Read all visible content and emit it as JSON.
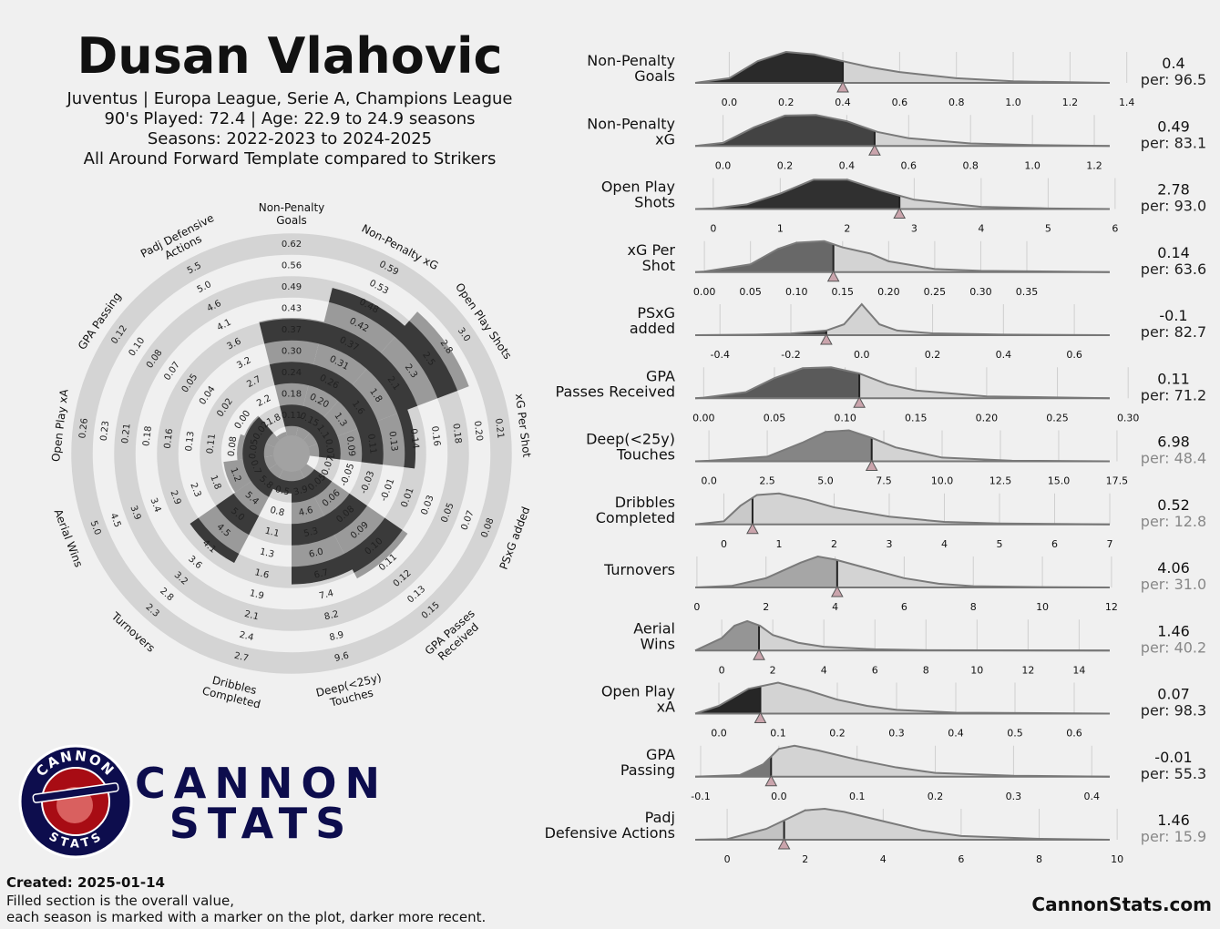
{
  "header": {
    "title": "Dusan Vlahovic",
    "subtitle": [
      "Juventus | Europa League, Serie A, Champions League",
      "90's Played: 72.4 | Age: 22.9 to 24.9 seasons",
      "Seasons: 2022-2023 to 2024-2025",
      "All Around Forward Template compared to Strikers"
    ]
  },
  "chart_data": {
    "type": "radar",
    "metrics": [
      {
        "radar_label": [
          "Non-Penalty",
          "Goals"
        ],
        "label": [
          "Non-Penalty",
          "Goals"
        ],
        "value": 0.4,
        "percentile": 96.5,
        "percentile_label": "per: 96.5",
        "rings": [
          0.11,
          0.18,
          0.24,
          {
            "value": 0.3,
            "label": "0.30"
          },
          0.37,
          0.43,
          0.49,
          0.56,
          0.62
        ],
        "xlim": [
          -0.12,
          1.34
        ],
        "xticks": [
          {
            "value": 0,
            "label": "0.0"
          },
          0.2,
          0.4,
          0.6,
          0.8,
          {
            "value": 1,
            "label": "1.0"
          },
          1.2,
          1.4
        ],
        "density_x": [
          -0.12,
          0,
          0.1,
          0.2,
          0.3,
          0.4,
          0.5,
          0.6,
          0.8,
          1.0,
          1.34
        ],
        "density_y": [
          0,
          0.15,
          0.7,
          1,
          0.92,
          0.7,
          0.5,
          0.35,
          0.15,
          0.05,
          0
        ]
      },
      {
        "radar_label": [
          "Non-Penalty xG"
        ],
        "label": [
          "Non-Penalty",
          "xG"
        ],
        "value": 0.49,
        "percentile": 83.1,
        "percentile_label": "per: 83.1",
        "rings": [
          0.15,
          {
            "value": 0.2,
            "label": "0.20"
          },
          0.26,
          0.31,
          0.37,
          0.42,
          0.48,
          0.53,
          0.59
        ],
        "xlim": [
          -0.09,
          1.25
        ],
        "xticks": [
          {
            "value": 0,
            "label": "0.0"
          },
          0.2,
          0.4,
          0.6,
          0.8,
          {
            "value": 1,
            "label": "1.0"
          },
          1.2
        ],
        "density_x": [
          -0.09,
          0,
          0.1,
          0.2,
          0.3,
          0.4,
          0.5,
          0.6,
          0.8,
          1.0,
          1.25
        ],
        "density_y": [
          0,
          0.1,
          0.6,
          0.98,
          1,
          0.8,
          0.45,
          0.25,
          0.08,
          0.03,
          0
        ]
      },
      {
        "radar_label": [
          "Open Play Shots"
        ],
        "label": [
          "Open Play",
          "Shots"
        ],
        "value": 2.78,
        "percentile": 93.0,
        "percentile_label": "per: 93.0",
        "rings": [
          1.1,
          1.3,
          1.6,
          1.8,
          2.1,
          2.3,
          2.5,
          2.8,
          {
            "value": 3,
            "label": "3.0"
          }
        ],
        "xlim": [
          -0.27,
          5.92
        ],
        "xticks": [
          0,
          1,
          2,
          3,
          4,
          5,
          6
        ],
        "density_x": [
          -0.27,
          0,
          0.5,
          1,
          1.5,
          2,
          2.5,
          3,
          4,
          5,
          5.92
        ],
        "density_y": [
          0,
          0.02,
          0.15,
          0.5,
          0.95,
          0.95,
          0.6,
          0.3,
          0.07,
          0.02,
          0
        ]
      },
      {
        "radar_label": [
          "xG Per Shot"
        ],
        "label": [
          "xG Per",
          "Shot"
        ],
        "value": 0.14,
        "percentile": 63.6,
        "percentile_label": "per: 63.6",
        "rings": [
          0.07,
          0.09,
          0.11,
          0.13,
          0.14,
          0.16,
          0.18,
          {
            "value": 0.2,
            "label": "0.20"
          },
          0.21
        ],
        "xlim": [
          -0.01,
          0.44
        ],
        "xticks": [
          {
            "value": 0,
            "label": "0.00"
          },
          0.05,
          {
            "value": 0.1,
            "label": "0.10"
          },
          0.15,
          {
            "value": 0.2,
            "label": "0.20"
          },
          0.25,
          {
            "value": 0.3,
            "label": "0.30"
          },
          0.35
        ],
        "density_x": [
          -0.01,
          0,
          0.05,
          0.08,
          0.1,
          0.13,
          0.15,
          0.18,
          0.2,
          0.25,
          0.3,
          0.44
        ],
        "density_y": [
          0,
          0.02,
          0.25,
          0.75,
          0.95,
          1,
          0.8,
          0.6,
          0.35,
          0.1,
          0.04,
          0
        ]
      },
      {
        "radar_label": [
          "PSxG added"
        ],
        "label": [
          "PSxG",
          "added"
        ],
        "value": -0.1,
        "percentile": 82.7,
        "percentile_label": "per: 82.7",
        "rings": [
          -0.07,
          -0.05,
          -0.03,
          -0.01,
          0.01,
          0.03,
          0.05,
          0.07,
          0.08
        ],
        "xlim": [
          -0.47,
          0.7
        ],
        "xticks": [
          -0.4,
          -0.2,
          {
            "value": 0,
            "label": "0.0"
          },
          0.2,
          0.4,
          0.6
        ],
        "density_x": [
          -0.47,
          -0.3,
          -0.2,
          -0.1,
          -0.05,
          0,
          0.05,
          0.1,
          0.2,
          0.4,
          0.7
        ],
        "density_y": [
          0,
          0.02,
          0.05,
          0.15,
          0.35,
          1,
          0.35,
          0.15,
          0.06,
          0.02,
          0
        ]
      },
      {
        "radar_label": [
          "GPA Passes",
          "Received"
        ],
        "label": [
          "GPA",
          "Passes Received"
        ],
        "value": 0.11,
        "percentile": 71.2,
        "percentile_label": "per: 71.2",
        "rings": [
          0.05,
          0.06,
          0.08,
          0.09,
          {
            "value": 0.1,
            "label": "0.10"
          },
          0.11,
          0.12,
          0.13,
          0.15
        ],
        "xlim": [
          -0.006,
          0.287
        ],
        "xticks": [
          {
            "value": 0,
            "label": "0.00"
          },
          0.05,
          {
            "value": 0.1,
            "label": "0.10"
          },
          0.15,
          {
            "value": 0.2,
            "label": "0.20"
          },
          0.25,
          {
            "value": 0.3,
            "label": "0.30"
          }
        ],
        "density_x": [
          -0.006,
          0,
          0.03,
          0.05,
          0.07,
          0.09,
          0.11,
          0.13,
          0.15,
          0.2,
          0.287
        ],
        "density_y": [
          0,
          0.02,
          0.2,
          0.65,
          0.97,
          1,
          0.8,
          0.45,
          0.25,
          0.06,
          0
        ]
      },
      {
        "radar_label": [
          "Deep(<25y)",
          "Touches"
        ],
        "label": [
          "Deep(<25y)",
          "Touches"
        ],
        "value": 6.98,
        "percentile": 48.4,
        "percentile_label": "per: 48.4",
        "rings": [
          3.9,
          4.6,
          5.3,
          {
            "value": 6,
            "label": "6.0"
          },
          6.7,
          7.4,
          8.2,
          8.9,
          9.6
        ],
        "xlim": [
          -0.59,
          17.19
        ],
        "xticks": [
          {
            "value": 0,
            "label": "0.0"
          },
          2.5,
          {
            "value": 5,
            "label": "5.0"
          },
          7.5,
          {
            "value": 10,
            "label": "10.0"
          },
          12.5,
          {
            "value": 15,
            "label": "15.0"
          },
          17.5
        ],
        "density_x": [
          -0.59,
          0,
          2.5,
          4,
          5,
          6,
          7,
          8,
          10,
          13,
          17.19
        ],
        "density_y": [
          0,
          0.02,
          0.15,
          0.6,
          0.95,
          1,
          0.75,
          0.45,
          0.12,
          0.02,
          0
        ]
      },
      {
        "radar_label": [
          "Dribbles",
          "Completed"
        ],
        "label": [
          "Dribbles",
          "Completed"
        ],
        "value": 0.52,
        "percentile": 12.8,
        "percentile_label": "per: 12.8",
        "rings": [
          0.5,
          0.8,
          1.1,
          1.3,
          1.6,
          1.9,
          2.1,
          2.4,
          2.7
        ],
        "xlim": [
          -0.52,
          7.0
        ],
        "xticks": [
          0,
          1,
          2,
          3,
          4,
          5,
          6,
          7
        ],
        "density_x": [
          -0.52,
          0,
          0.3,
          0.6,
          1,
          1.5,
          2,
          3,
          4,
          5,
          7
        ],
        "density_y": [
          0,
          0.1,
          0.6,
          0.95,
          1,
          0.8,
          0.55,
          0.25,
          0.08,
          0.03,
          0
        ]
      },
      {
        "radar_label": [
          "Turnovers"
        ],
        "label": [
          "Turnovers"
        ],
        "value": 4.06,
        "percentile": 31.0,
        "percentile_label": "per: 31.0",
        "rings": [
          5.8,
          5.4,
          {
            "value": 5,
            "label": "5.0"
          },
          4.5,
          4.1,
          3.6,
          3.2,
          2.8,
          2.3
        ],
        "xlim": [
          -0.05,
          11.95
        ],
        "xticks": [
          0,
          2,
          4,
          6,
          8,
          10,
          12
        ],
        "density_x": [
          -0.05,
          1,
          2,
          3,
          3.5,
          4,
          5,
          6,
          7,
          8,
          10,
          11.95
        ],
        "density_y": [
          0,
          0.05,
          0.3,
          0.8,
          1,
          0.9,
          0.6,
          0.3,
          0.12,
          0.04,
          0.01,
          0
        ]
      },
      {
        "radar_label": [
          "Aerial Wins"
        ],
        "label": [
          "Aerial",
          "Wins"
        ],
        "value": 1.46,
        "percentile": 40.2,
        "percentile_label": "per: 40.2",
        "rings": [
          0.7,
          1.2,
          1.8,
          2.3,
          2.9,
          3.4,
          3.9,
          4.5,
          {
            "value": 5,
            "label": "5.0"
          }
        ],
        "xlim": [
          -1.04,
          15.2
        ],
        "xticks": [
          0,
          2,
          4,
          6,
          8,
          10,
          12,
          14
        ],
        "density_x": [
          -1.04,
          0,
          0.5,
          1,
          1.5,
          2,
          3,
          4,
          6,
          8,
          15.2
        ],
        "density_y": [
          0,
          0.4,
          0.8,
          0.95,
          0.8,
          0.5,
          0.25,
          0.12,
          0.04,
          0.01,
          0
        ]
      },
      {
        "radar_label": [
          "Open Play xA"
        ],
        "label": [
          "Open Play",
          "xA"
        ],
        "value": 0.07,
        "percentile": 98.3,
        "percentile_label": "per: 98.3",
        "rings": [
          0.05,
          0.08,
          0.11,
          0.13,
          0.16,
          0.18,
          0.21,
          0.23,
          0.26
        ],
        "xlim": [
          -0.04,
          0.66
        ],
        "xticks": [
          {
            "value": 0,
            "label": "0.0"
          },
          0.1,
          0.2,
          0.3,
          0.4,
          0.5,
          0.6
        ],
        "density_x": [
          -0.04,
          0,
          0.05,
          0.1,
          0.15,
          0.2,
          0.25,
          0.3,
          0.4,
          0.66
        ],
        "density_y": [
          0,
          0.25,
          0.8,
          1,
          0.75,
          0.45,
          0.25,
          0.12,
          0.03,
          0
        ]
      },
      {
        "radar_label": [
          "GPA Passing"
        ],
        "label": [
          "GPA",
          "Passing"
        ],
        "value": -0.01,
        "percentile": 55.3,
        "percentile_label": "per: 55.3",
        "rings": [
          -0.02,
          {
            "value": 0,
            "label": "0.00"
          },
          0.02,
          0.04,
          0.05,
          0.07,
          0.08,
          {
            "value": 0.1,
            "label": "0.10"
          },
          0.12
        ],
        "xlim": [
          -0.107,
          0.423
        ],
        "xticks": [
          -0.1,
          {
            "value": 0,
            "label": "0.0"
          },
          0.1,
          0.2,
          0.3,
          0.4
        ],
        "density_x": [
          -0.107,
          -0.05,
          -0.02,
          0,
          0.02,
          0.05,
          0.1,
          0.15,
          0.2,
          0.3,
          0.423
        ],
        "density_y": [
          0,
          0.05,
          0.4,
          0.9,
          1,
          0.85,
          0.55,
          0.3,
          0.12,
          0.03,
          0
        ]
      },
      {
        "radar_label": [
          "Padj Defensive",
          "Actions"
        ],
        "label": [
          "Padj",
          "Defensive Actions"
        ],
        "value": 1.46,
        "percentile": 15.9,
        "percentile_label": "per: 15.9",
        "rings": [
          1.8,
          2.2,
          2.7,
          3.2,
          3.6,
          4.1,
          4.6,
          {
            "value": 5,
            "label": "5.0"
          },
          5.5
        ],
        "xlim": [
          -0.82,
          9.81
        ],
        "xticks": [
          0,
          2,
          4,
          6,
          8,
          10
        ],
        "density_x": [
          -0.82,
          0,
          1,
          2,
          2.5,
          3,
          4,
          5,
          6,
          8,
          9.81
        ],
        "density_y": [
          0,
          0.02,
          0.35,
          0.95,
          1,
          0.9,
          0.6,
          0.3,
          0.12,
          0.03,
          0
        ]
      }
    ]
  },
  "logo": {
    "ring_top": "CANNON",
    "ring_bottom": "STATS",
    "brand": [
      "CANNON",
      "STATS"
    ]
  },
  "footer": {
    "created": "Created: 2025-01-14",
    "notes": [
      "Filled section is the overall value,",
      "each season is marked with a marker on the plot, darker more recent."
    ],
    "site": "CannonStats.com"
  }
}
